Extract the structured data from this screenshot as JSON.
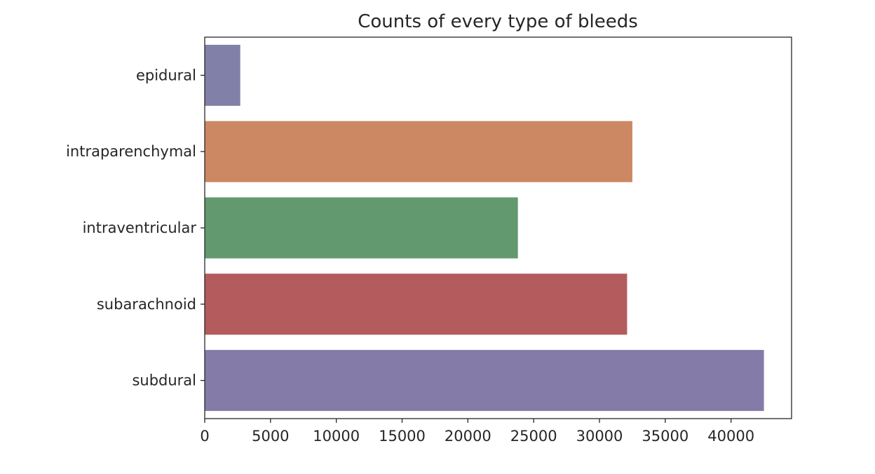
{
  "chart_data": {
    "type": "bar",
    "orientation": "horizontal",
    "title": "Counts of every type of bleeds",
    "xlabel": "",
    "ylabel": "",
    "categories": [
      "epidural",
      "intraparenchymal",
      "intraventricular",
      "subarachnoid",
      "subdural"
    ],
    "values": [
      2700,
      32500,
      23800,
      32100,
      42500
    ],
    "colors": [
      "#8080a8",
      "#cc8763",
      "#63996f",
      "#b35b5d",
      "#857ba8"
    ],
    "xlim": [
      0,
      44600
    ],
    "xticks": [
      0,
      5000,
      10000,
      15000,
      20000,
      25000,
      30000,
      35000,
      40000
    ],
    "xtick_labels": [
      "0",
      "5000",
      "10000",
      "15000",
      "20000",
      "25000",
      "30000",
      "35000",
      "40000"
    ],
    "grid": false,
    "legend": "none"
  }
}
